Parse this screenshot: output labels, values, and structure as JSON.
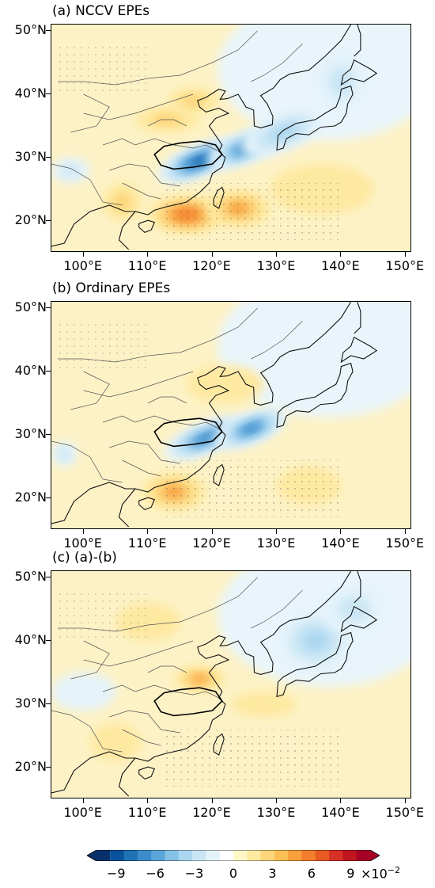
{
  "panels": [
    {
      "id": "a",
      "title": "(a) NCCV EPEs"
    },
    {
      "id": "b",
      "title": "(b) Ordinary EPEs"
    },
    {
      "id": "c",
      "title": "(c) (a)-(b)"
    }
  ],
  "axes": {
    "lat_ticks": [
      "20°N",
      "30°N",
      "40°N",
      "50°N"
    ],
    "lon_ticks": [
      "100°E",
      "110°E",
      "120°E",
      "130°E",
      "140°E",
      "150°E"
    ],
    "lat_range": [
      15,
      51
    ],
    "lon_range": [
      95,
      151
    ]
  },
  "colorbar": {
    "labels": [
      "−9",
      "−6",
      "−3",
      "0",
      "3",
      "6",
      "9"
    ],
    "multiplier": "×10",
    "exponent": "−2",
    "range": [
      -10.5,
      10.5
    ],
    "colors": [
      "#08306b",
      "#08519c",
      "#2171b5",
      "#3c8ccb",
      "#5aa5da",
      "#85c1e6",
      "#abd6f0",
      "#cae6f5",
      "#e4f3fa",
      "#ffffff",
      "#fff7c8",
      "#fee9a0",
      "#fdd57a",
      "#fbbf56",
      "#f99f3c",
      "#f47d2e",
      "#e85a22",
      "#d73027",
      "#c0151e",
      "#a50026"
    ],
    "zero_colors": [
      "#e9f5fb",
      "#fdf2c6"
    ]
  },
  "chart_data": [
    {
      "type": "heatmap",
      "title": "(a) NCCV EPEs",
      "x_unit": "longitude °E",
      "y_unit": "latitude °N",
      "features": [
        {
          "lon": 118,
          "lat": 29.5,
          "value": -9,
          "extent_lon": 7,
          "extent_lat": 2.5,
          "orientation": "SW-NE"
        },
        {
          "lon": 125,
          "lat": 31.5,
          "value": -7,
          "extent_lon": 6,
          "extent_lat": 2.5,
          "orientation": "SW-NE"
        },
        {
          "lon": 131,
          "lat": 34,
          "value": -4,
          "extent_lon": 7,
          "extent_lat": 3,
          "orientation": "SW-NE"
        },
        {
          "lon": 98,
          "lat": 28,
          "value": -3,
          "extent_lon": 3,
          "extent_lat": 2
        },
        {
          "lon": 140,
          "lat": 42,
          "value": -3,
          "extent_lon": 4,
          "extent_lat": 5
        },
        {
          "lon": 116,
          "lat": 21,
          "value": 6,
          "extent_lon": 6,
          "extent_lat": 3
        },
        {
          "lon": 124,
          "lat": 22,
          "value": 4,
          "extent_lon": 5,
          "extent_lat": 3
        },
        {
          "lon": 113,
          "lat": 36,
          "value": 3,
          "extent_lon": 5,
          "extent_lat": 2
        },
        {
          "lon": 117,
          "lat": 39,
          "value": 3,
          "extent_lon": 4,
          "extent_lat": 2
        },
        {
          "lon": 137,
          "lat": 25,
          "value": 2,
          "extent_lon": 8,
          "extent_lat": 4
        },
        {
          "lon": 106,
          "lat": 23,
          "value": 3,
          "extent_lon": 3,
          "extent_lat": 3
        }
      ]
    },
    {
      "type": "heatmap",
      "title": "(b) Ordinary EPEs",
      "x_unit": "longitude °E",
      "y_unit": "latitude °N",
      "features": [
        {
          "lon": 119,
          "lat": 29.5,
          "value": -8,
          "extent_lon": 7,
          "extent_lat": 2.5,
          "orientation": "SW-NE"
        },
        {
          "lon": 126,
          "lat": 31,
          "value": -8,
          "extent_lon": 6,
          "extent_lat": 2.5,
          "orientation": "SW-NE"
        },
        {
          "lon": 97,
          "lat": 27,
          "value": -3,
          "extent_lon": 2,
          "extent_lat": 2
        },
        {
          "lon": 114,
          "lat": 21,
          "value": 4,
          "extent_lon": 5,
          "extent_lat": 3
        },
        {
          "lon": 122,
          "lat": 38,
          "value": 2,
          "extent_lon": 6,
          "extent_lat": 3
        },
        {
          "lon": 135,
          "lat": 22,
          "value": 2,
          "extent_lon": 5,
          "extent_lat": 3
        }
      ]
    },
    {
      "type": "heatmap",
      "title": "(c) (a)-(b)",
      "x_unit": "longitude °E",
      "y_unit": "latitude °N",
      "features": [
        {
          "lon": 136,
          "lat": 40,
          "value": -4,
          "extent_lon": 6,
          "extent_lat": 5
        },
        {
          "lon": 142,
          "lat": 45,
          "value": -3,
          "extent_lon": 5,
          "extent_lat": 4
        },
        {
          "lon": 118,
          "lat": 34,
          "value": 4,
          "extent_lon": 4,
          "extent_lat": 2
        },
        {
          "lon": 128,
          "lat": 30,
          "value": 2,
          "extent_lon": 5,
          "extent_lat": 2
        },
        {
          "lon": 100,
          "lat": 32,
          "value": -1,
          "extent_lon": 5,
          "extent_lat": 3
        },
        {
          "lon": 110,
          "lat": 43,
          "value": 2,
          "extent_lon": 5,
          "extent_lat": 3
        },
        {
          "lon": 105,
          "lat": 24,
          "value": 2,
          "extent_lon": 4,
          "extent_lat": 3
        }
      ]
    }
  ]
}
